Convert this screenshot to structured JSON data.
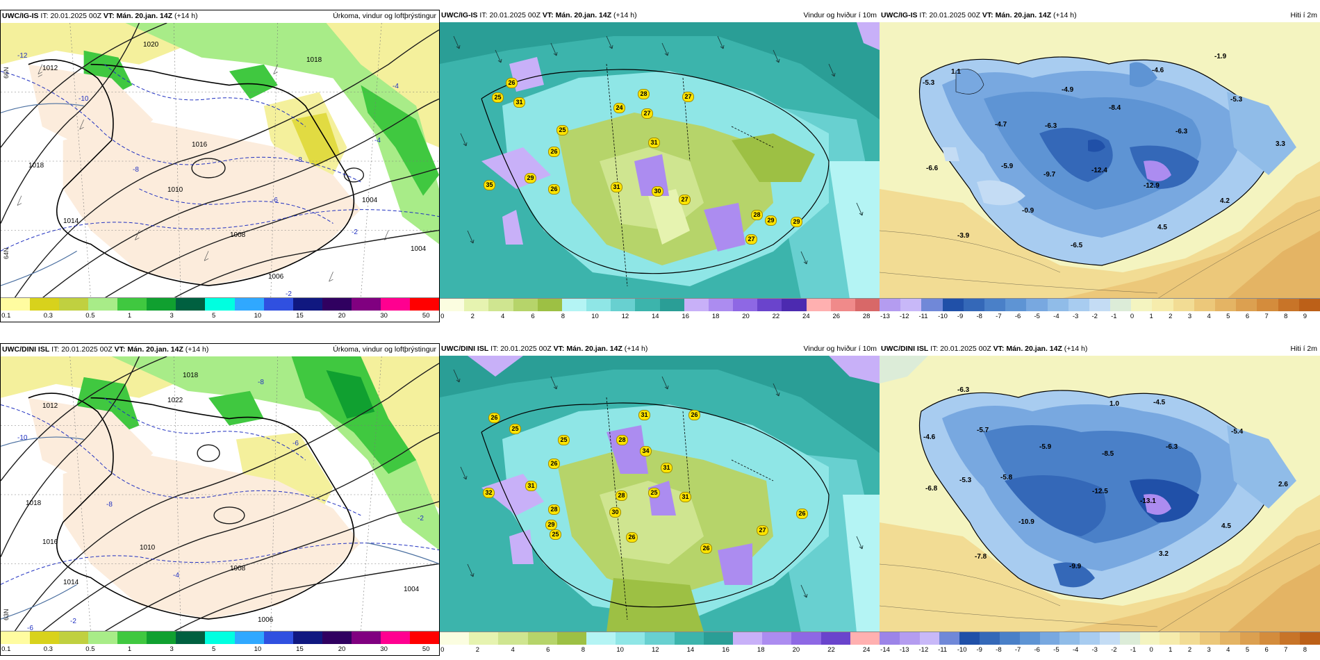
{
  "panels": {
    "p1": {
      "model": "UWC/IG-IS",
      "it_label": "IT:",
      "it": "20.01.2025 00Z",
      "vt_label": "VT:",
      "vt": "Mán. 20.jan. 14Z",
      "lead": "(+14 h)",
      "product": "Úrkoma, vindur og loftþrýstingur"
    },
    "p2": {
      "model": "UWC/IG-IS",
      "it_label": "IT:",
      "it": "20.01.2025 00Z",
      "vt_label": "VT:",
      "vt": "Mán. 20.jan. 14Z",
      "lead": "(+14 h)",
      "product": "Vindur og hviður í 10m"
    },
    "p3": {
      "model": "UWC/IG-IS",
      "it_label": "IT:",
      "it": "20.01.2025 00Z",
      "vt_label": "VT:",
      "vt": "Mán. 20.jan. 14Z",
      "lead": "(+14 h)",
      "product": "Hiti í 2m"
    },
    "p4": {
      "model": "UWC/DINI ISL",
      "it_label": "IT:",
      "it": "20.01.2025 00Z",
      "vt_label": "VT:",
      "vt": "Mán. 20.jan. 14Z",
      "lead": "(+14 h)",
      "product": "Úrkoma, vindur og loftþrýstingur"
    },
    "p5": {
      "model": "UWC/DINI ISL",
      "it_label": "IT:",
      "it": "20.01.2025 00Z",
      "vt_label": "VT:",
      "vt": "Mán. 20.jan. 14Z",
      "lead": "(+14 h)",
      "product": "Vindur og hviður í 10m"
    },
    "p6": {
      "model": "UWC/DINI ISL",
      "it_label": "IT:",
      "it": "20.01.2025 00Z",
      "vt_label": "VT:",
      "vt": "Mán. 20.jan. 14Z",
      "lead": "(+14 h)",
      "product": "Hiti í 2m"
    }
  },
  "precip_scale": {
    "colors": [
      "#fffca0",
      "#d8d21c",
      "#c0d040",
      "#a8ec88",
      "#40c840",
      "#10a030",
      "#006040",
      "#00ffe0",
      "#30a8ff",
      "#3050e0",
      "#101880",
      "#300060",
      "#800080",
      "#ff0090",
      "#ff0000"
    ],
    "ticks": [
      "0.1",
      "0.3",
      "0.5",
      "1",
      "3",
      "5",
      "10",
      "15",
      "20",
      "30",
      "50"
    ]
  },
  "wind_scale_top": {
    "colors": [
      "#fbfde0",
      "#e6f3b0",
      "#cfe590",
      "#b6d46a",
      "#9dc044",
      "#b4f4f4",
      "#8fe6e6",
      "#68d0d0",
      "#3cb4ac",
      "#2a9e96",
      "#c8b0f8",
      "#ac8cf0",
      "#8e68e4",
      "#6a44cc",
      "#4c2ab0",
      "#ffb0b0",
      "#f08a8a",
      "#d86868"
    ],
    "ticks": [
      "0",
      "2",
      "4",
      "6",
      "8",
      "10",
      "12",
      "14",
      "16",
      "18",
      "20",
      "22",
      "24",
      "26",
      "28"
    ]
  },
  "wind_scale_bottom": {
    "colors": [
      "#fbfde0",
      "#e6f3b0",
      "#cfe590",
      "#b6d46a",
      "#9dc044",
      "#b4f4f4",
      "#8fe6e6",
      "#68d0d0",
      "#3cb4ac",
      "#2a9e96",
      "#c8b0f8",
      "#ac8cf0",
      "#8e68e4",
      "#6a44cc",
      "#ffb0b0"
    ],
    "ticks": [
      "0",
      "2",
      "4",
      "6",
      "8",
      "10",
      "12",
      "14",
      "16",
      "18",
      "20",
      "22",
      "24"
    ]
  },
  "temp_scale_top": {
    "colors": [
      "#b49cf0",
      "#c8b8f8",
      "#7088d8",
      "#2050a8",
      "#3468b8",
      "#4a80c8",
      "#5e94d4",
      "#78a8e0",
      "#90bce8",
      "#a8ccf0",
      "#c4dcf4",
      "#dcecd8",
      "#f4f4c0",
      "#f6ecac",
      "#f2dc94",
      "#ecc87a",
      "#e4b464",
      "#dca050",
      "#d48c3c",
      "#c87428",
      "#bc6018"
    ],
    "ticks": [
      "-13",
      "-12",
      "-11",
      "-10",
      "-9",
      "-8",
      "-7",
      "-6",
      "-5",
      "-4",
      "-3",
      "-2",
      "-1",
      "0",
      "1",
      "2",
      "3",
      "4",
      "5",
      "6",
      "7",
      "8",
      "9"
    ]
  },
  "temp_scale_bottom": {
    "colors": [
      "#9c84e8",
      "#b49cf0",
      "#c8b8f8",
      "#7088d8",
      "#2050a8",
      "#3468b8",
      "#4a80c8",
      "#5e94d4",
      "#78a8e0",
      "#90bce8",
      "#a8ccf0",
      "#c4dcf4",
      "#dcecd8",
      "#f4f4c0",
      "#f6ecac",
      "#f2dc94",
      "#ecc87a",
      "#e4b464",
      "#dca050",
      "#d48c3c",
      "#c87428",
      "#bc6018"
    ],
    "ticks": [
      "-14",
      "-13",
      "-12",
      "-11",
      "-10",
      "-9",
      "-8",
      "-7",
      "-6",
      "-5",
      "-4",
      "-3",
      "-2",
      "-1",
      "0",
      "1",
      "2",
      "3",
      "4",
      "5",
      "6",
      "7",
      "8"
    ]
  },
  "isobar_labels": {
    "p1": [
      "1020",
      "1018",
      "1018",
      "1016",
      "1014",
      "1012",
      "1010",
      "1008",
      "1006",
      "1004",
      "1004"
    ],
    "p4": [
      "1022",
      "1018",
      "1018",
      "1016",
      "1014",
      "1012",
      "1010",
      "1008",
      "1006",
      "1004"
    ]
  },
  "temp_labels_p1": [
    "-12",
    "-10",
    "-8",
    "-8",
    "-6",
    "-4",
    "-4",
    "-2",
    "-6",
    "-2"
  ],
  "temp_labels_p4": [
    "-10",
    "-8",
    "-8",
    "-6",
    "-4",
    "-2",
    "-6",
    "-2"
  ],
  "gust_labels_p2": [
    "26",
    "25",
    "31",
    "24",
    "28",
    "27",
    "25",
    "27",
    "31",
    "26",
    "29",
    "26",
    "35",
    "31",
    "30",
    "27",
    "29",
    "28",
    "29",
    "27"
  ],
  "gust_labels_p5": [
    "26",
    "25",
    "31",
    "26",
    "28",
    "34",
    "25",
    "31",
    "26",
    "32",
    "31",
    "28",
    "30",
    "25",
    "31",
    "28",
    "29",
    "26",
    "25",
    "26",
    "27",
    "26"
  ],
  "temp_values_p3": [
    "1.1",
    "-1.9",
    "-5.3",
    "-4.6",
    "-4.9",
    "-8.4",
    "-5.3",
    "-4.7",
    "-6.3",
    "-6.3",
    "3.3",
    "-6.6",
    "-5.9",
    "-9.7",
    "-12.4",
    "-12.9",
    "4.2",
    "-0.9",
    "-3.9",
    "-6.5",
    "4.5"
  ],
  "temp_values_p6": [
    "-6.3",
    "1.0",
    "-4.5",
    "-4.6",
    "-5.7",
    "-5.9",
    "-8.5",
    "-6.3",
    "-5.4",
    "-5.3",
    "-5.8",
    "-6.8",
    "-12.5",
    "-13.1",
    "2.6",
    "-10.9",
    "4.5",
    "3.2",
    "-7.8",
    "-9.9"
  ],
  "axis_labels": {
    "lat66": "66N",
    "lat63": "63N",
    "lat64": "64N"
  }
}
